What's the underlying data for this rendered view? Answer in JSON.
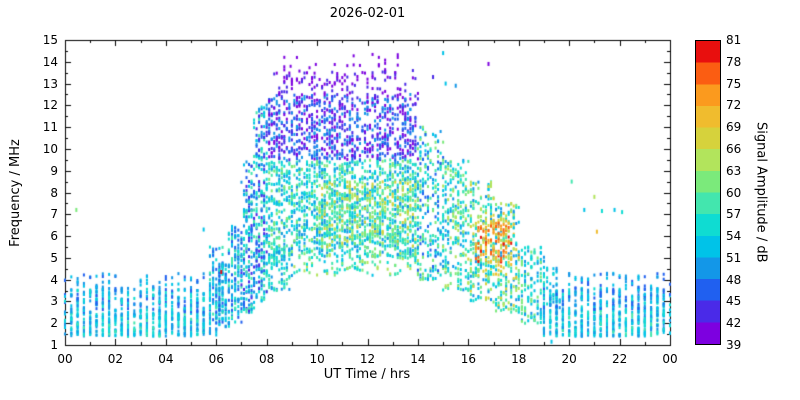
{
  "chart_data": {
    "type": "scatter",
    "title": "2026-02-01",
    "xlabel": "UT Time / hrs",
    "ylabel": "Frequency / MHz",
    "xlim": [
      0,
      24
    ],
    "ylim": [
      1,
      15
    ],
    "grid": false,
    "background": "#ffffff",
    "x_ticks": {
      "values": [
        0,
        2,
        4,
        6,
        8,
        10,
        12,
        14,
        16,
        18,
        20,
        22,
        24
      ],
      "labels": [
        "00",
        "02",
        "04",
        "06",
        "08",
        "10",
        "12",
        "14",
        "16",
        "18",
        "20",
        "22",
        "00"
      ],
      "minor_step": 1
    },
    "y_ticks": {
      "values": [
        1,
        2,
        3,
        4,
        5,
        6,
        7,
        8,
        9,
        10,
        11,
        12,
        13,
        14,
        15
      ],
      "labels": [
        "1",
        "2",
        "3",
        "4",
        "5",
        "6",
        "7",
        "8",
        "9",
        "10",
        "11",
        "12",
        "13",
        "14",
        "15"
      ],
      "minor_step": 0.5
    },
    "colorbar": {
      "label": "Signal Amplitude / dB",
      "min": 39,
      "max": 81,
      "ticks": [
        39,
        42,
        45,
        48,
        51,
        54,
        57,
        60,
        63,
        66,
        69,
        72,
        75,
        78,
        81
      ],
      "colors": [
        "#7d00e0",
        "#4a2ae8",
        "#2060f0",
        "#1397e8",
        "#00c3e8",
        "#0fdcd2",
        "#43e6ae",
        "#7bea7b",
        "#b2e45c",
        "#d6d23c",
        "#f0bc2e",
        "#fb9a1e",
        "#fb5d12",
        "#e80f0e"
      ]
    },
    "point_size": [
      2,
      3
    ],
    "seed": 20260201,
    "bands": [
      {
        "t0": 0,
        "t1": 6,
        "f0": 1.4,
        "f1": 2.5,
        "n": 500,
        "v0": 48,
        "v1": 58,
        "step": 0.25
      },
      {
        "t0": 0,
        "t1": 6,
        "f0": 2.5,
        "f1": 3.6,
        "n": 300,
        "v0": 45,
        "v1": 57,
        "step": 0.25
      },
      {
        "t0": 0,
        "t1": 6,
        "f0": 3.6,
        "f1": 4.3,
        "n": 60,
        "v0": 45,
        "v1": 54,
        "step": 0.25
      },
      {
        "t0": 5.75,
        "t1": 6.25,
        "f0": 2.0,
        "f1": 5.5,
        "n": 70,
        "v0": 45,
        "v1": 60,
        "step": 0.125
      },
      {
        "t0": 6,
        "t1": 6.5,
        "f0": 1.8,
        "f1": 4.8,
        "n": 100,
        "v0": 45,
        "v1": 57,
        "step": 0.125
      },
      {
        "t0": 6.5,
        "t1": 7,
        "f0": 2.0,
        "f1": 6.5,
        "n": 140,
        "v0": 45,
        "v1": 60,
        "step": 0.125
      },
      {
        "t0": 7,
        "t1": 7.5,
        "f0": 2.5,
        "f1": 9.5,
        "n": 200,
        "v0": 42,
        "v1": 60,
        "step": 0.1
      },
      {
        "t0": 7.5,
        "t1": 8,
        "f0": 3.0,
        "f1": 12.0,
        "n": 240,
        "v0": 42,
        "v1": 60,
        "step": 0.1
      },
      {
        "t0": 8,
        "t1": 9,
        "f0": 3.5,
        "f1": 5.5,
        "n": 90,
        "v0": 48,
        "v1": 60,
        "step": 0.1
      },
      {
        "t0": 8,
        "t1": 14,
        "f0": 5.0,
        "f1": 9.5,
        "n": 1400,
        "v0": 48,
        "v1": 63,
        "step": 0.1
      },
      {
        "t0": 8,
        "t1": 14,
        "f0": 9.5,
        "f1": 12.5,
        "n": 800,
        "v0": 39,
        "v1": 51,
        "step": 0.1
      },
      {
        "t0": 8,
        "t1": 14,
        "f0": 12.5,
        "f1": 13.6,
        "n": 110,
        "v0": 39,
        "v1": 45,
        "step": 0.1
      },
      {
        "t0": 8.2,
        "t1": 13.5,
        "f0": 13.6,
        "f1": 14.35,
        "n": 22,
        "v0": 39,
        "v1": 42,
        "step": 0.25
      },
      {
        "t0": 9,
        "t1": 14,
        "f0": 4.2,
        "f1": 5.2,
        "n": 100,
        "v0": 51,
        "v1": 66,
        "step": 0.1
      },
      {
        "t0": 10,
        "t1": 14,
        "f0": 5.5,
        "f1": 8.5,
        "n": 300,
        "v0": 57,
        "v1": 69,
        "step": 0.1
      },
      {
        "t0": 14,
        "t1": 15,
        "f0": 4.0,
        "f1": 11.0,
        "n": 240,
        "v0": 45,
        "v1": 63,
        "step": 0.1
      },
      {
        "t0": 15,
        "t1": 16,
        "f0": 3.5,
        "f1": 9.5,
        "n": 240,
        "v0": 48,
        "v1": 66,
        "step": 0.1
      },
      {
        "t0": 16,
        "t1": 17,
        "f0": 3.0,
        "f1": 8.5,
        "n": 240,
        "v0": 48,
        "v1": 69,
        "step": 0.1
      },
      {
        "t0": 17,
        "t1": 18,
        "f0": 2.5,
        "f1": 7.5,
        "n": 220,
        "v0": 48,
        "v1": 72,
        "step": 0.1
      },
      {
        "t0": 16.3,
        "t1": 17.7,
        "f0": 4.8,
        "f1": 6.6,
        "n": 130,
        "v0": 66,
        "v1": 79,
        "step": 0.1
      },
      {
        "t0": 18,
        "t1": 19,
        "f0": 2.0,
        "f1": 5.5,
        "n": 150,
        "v0": 48,
        "v1": 63,
        "step": 0.125
      },
      {
        "t0": 19,
        "t1": 19.6,
        "f0": 2.5,
        "f1": 4.6,
        "n": 40,
        "v0": 48,
        "v1": 57,
        "step": 0.125
      },
      {
        "t0": 19,
        "t1": 24,
        "f0": 1.4,
        "f1": 2.6,
        "n": 450,
        "v0": 48,
        "v1": 58,
        "step": 0.25
      },
      {
        "t0": 19,
        "t1": 24,
        "f0": 2.6,
        "f1": 3.6,
        "n": 280,
        "v0": 45,
        "v1": 57,
        "step": 0.25
      },
      {
        "t0": 20,
        "t1": 24,
        "f0": 3.6,
        "f1": 4.3,
        "n": 50,
        "v0": 45,
        "v1": 54,
        "step": 0.25
      }
    ],
    "extra_points": [
      {
        "t": 0.45,
        "f": 7.2,
        "v": 60
      },
      {
        "t": 5.5,
        "f": 6.3,
        "v": 51
      },
      {
        "t": 6.2,
        "f": 4.35,
        "v": 80
      },
      {
        "t": 14.6,
        "f": 13.3,
        "v": 42
      },
      {
        "t": 15.0,
        "f": 14.4,
        "v": 51
      },
      {
        "t": 15.1,
        "f": 13.0,
        "v": 51
      },
      {
        "t": 15.5,
        "f": 12.9,
        "v": 48
      },
      {
        "t": 16.8,
        "f": 13.9,
        "v": 40
      },
      {
        "t": 19.3,
        "f": 1.15,
        "v": 51
      },
      {
        "t": 20.1,
        "f": 8.5,
        "v": 57
      },
      {
        "t": 20.6,
        "f": 7.2,
        "v": 51
      },
      {
        "t": 21.0,
        "f": 7.8,
        "v": 63
      },
      {
        "t": 21.1,
        "f": 6.2,
        "v": 69
      },
      {
        "t": 21.3,
        "f": 7.15,
        "v": 54
      },
      {
        "t": 21.8,
        "f": 7.2,
        "v": 51
      },
      {
        "t": 22.1,
        "f": 7.1,
        "v": 54
      }
    ]
  }
}
